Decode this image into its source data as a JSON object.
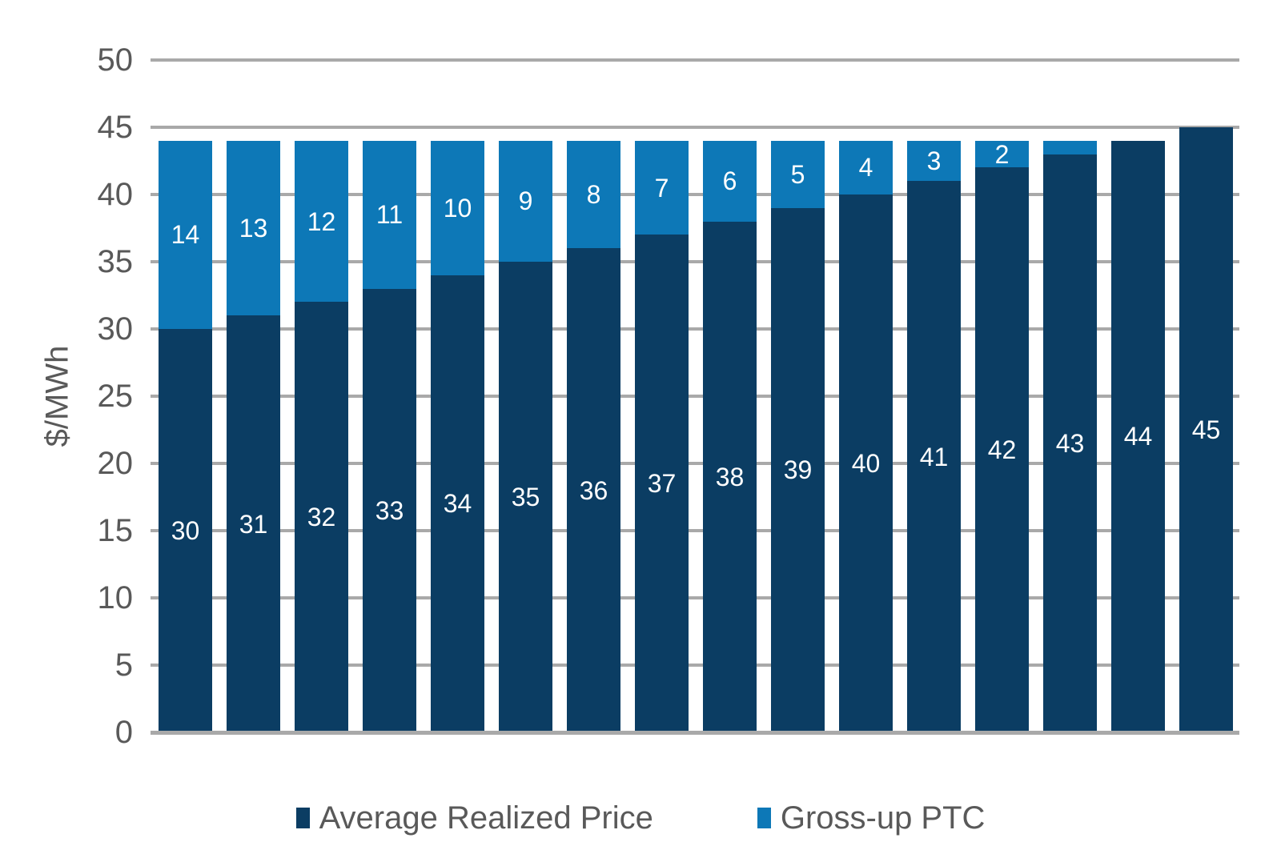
{
  "chart_data": {
    "type": "bar",
    "stacked": true,
    "title": "",
    "xlabel": "",
    "ylabel": "$/MWh",
    "ylim": [
      0,
      50
    ],
    "yticks": [
      0,
      5,
      10,
      15,
      20,
      25,
      30,
      35,
      40,
      45,
      50
    ],
    "grid": true,
    "legend_position": "bottom",
    "series": [
      {
        "name": "Average Realized Price",
        "color": "#0b3d63",
        "values": [
          30,
          31,
          32,
          33,
          34,
          35,
          36,
          37,
          38,
          39,
          40,
          41,
          42,
          43,
          44,
          45
        ],
        "labels": [
          "30",
          "31",
          "32",
          "33",
          "34",
          "35",
          "36",
          "37",
          "38",
          "39",
          "40",
          "41",
          "42",
          "43",
          "44",
          "45"
        ]
      },
      {
        "name": "Gross-up PTC",
        "color": "#0d78b7",
        "values": [
          14,
          13,
          12,
          11,
          10,
          9,
          8,
          7,
          6,
          5,
          4,
          3,
          2,
          1,
          0,
          0
        ],
        "labels": [
          "14",
          "13",
          "12",
          "11",
          "10",
          "9",
          "8",
          "7",
          "6",
          "5",
          "4",
          "3",
          "2",
          "",
          "",
          ""
        ]
      }
    ],
    "colors": {
      "grid": "#a9a9a9",
      "axis_text": "#595959",
      "bar_label": "#ffffff",
      "background": "#ffffff"
    }
  }
}
